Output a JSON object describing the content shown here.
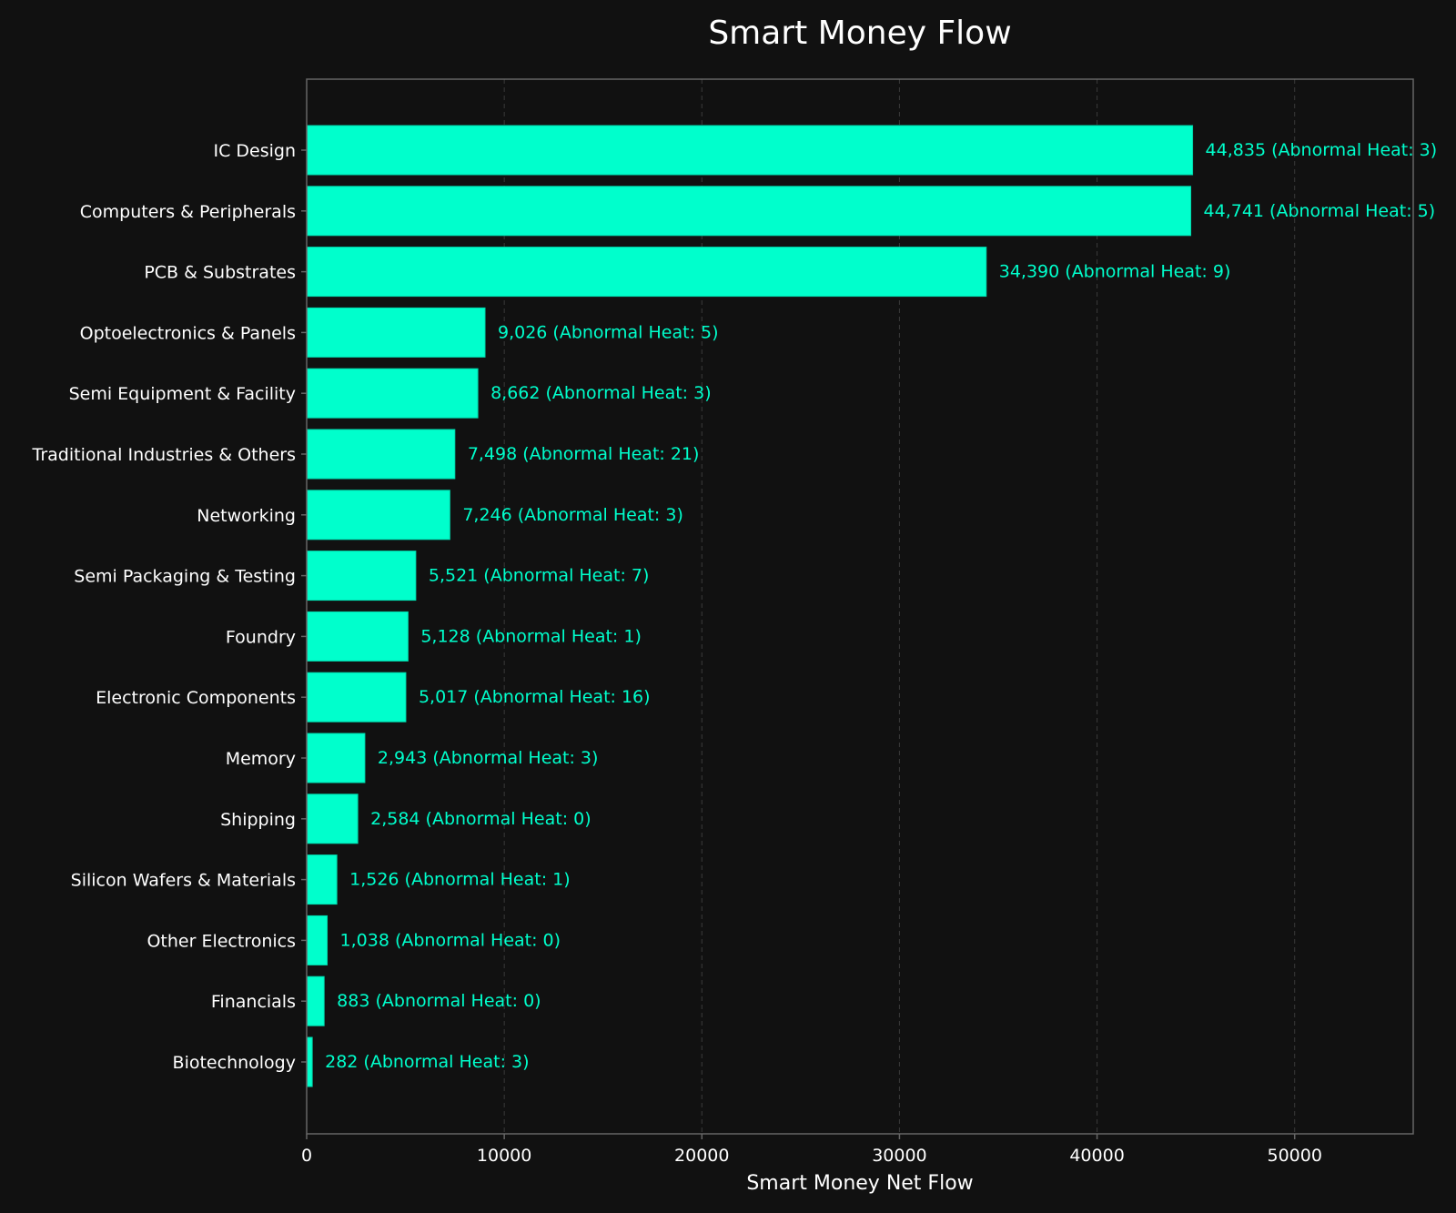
{
  "chart_data": {
    "type": "bar",
    "orientation": "horizontal",
    "title": "Smart Money Flow",
    "xlabel": "Smart Money Net Flow",
    "ylabel": "",
    "xlim": [
      0,
      56000
    ],
    "xticks": [
      0,
      10000,
      20000,
      30000,
      40000,
      50000
    ],
    "grid": "vertical dashed",
    "legend": "none",
    "colors": {
      "background": "#111111",
      "bar": "#00ffcc",
      "value_label": "#00ffcc",
      "text": "#ffffff",
      "axis": "#666666",
      "grid": "#3a3a3a"
    },
    "categories": [
      "IC Design",
      "Computers & Peripherals",
      "PCB & Substrates",
      "Optoelectronics & Panels",
      "Semi Equipment & Facility",
      "Traditional Industries & Others",
      "Networking",
      "Semi Packaging & Testing",
      "Foundry",
      "Electronic Components",
      "Memory",
      "Shipping",
      "Silicon Wafers & Materials",
      "Other Electronics",
      "Financials",
      "Biotechnology"
    ],
    "values": [
      44835,
      44741,
      34390,
      9026,
      8662,
      7498,
      7246,
      5521,
      5128,
      5017,
      2943,
      2584,
      1526,
      1038,
      883,
      282
    ],
    "abnormal_heat": [
      3,
      5,
      9,
      5,
      3,
      21,
      3,
      7,
      1,
      16,
      3,
      0,
      1,
      0,
      0,
      3
    ],
    "data_labels": [
      "44,835 (Abnormal Heat: 3)",
      "44,741 (Abnormal Heat: 5)",
      "34,390 (Abnormal Heat: 9)",
      "9,026 (Abnormal Heat: 5)",
      "8,662 (Abnormal Heat: 3)",
      "7,498 (Abnormal Heat: 21)",
      "7,246 (Abnormal Heat: 3)",
      "5,521 (Abnormal Heat: 7)",
      "5,128 (Abnormal Heat: 1)",
      "5,017 (Abnormal Heat: 16)",
      "2,943 (Abnormal Heat: 3)",
      "2,584 (Abnormal Heat: 0)",
      "1,526 (Abnormal Heat: 1)",
      "1,038 (Abnormal Heat: 0)",
      "883 (Abnormal Heat: 0)",
      "282 (Abnormal Heat: 3)"
    ]
  }
}
